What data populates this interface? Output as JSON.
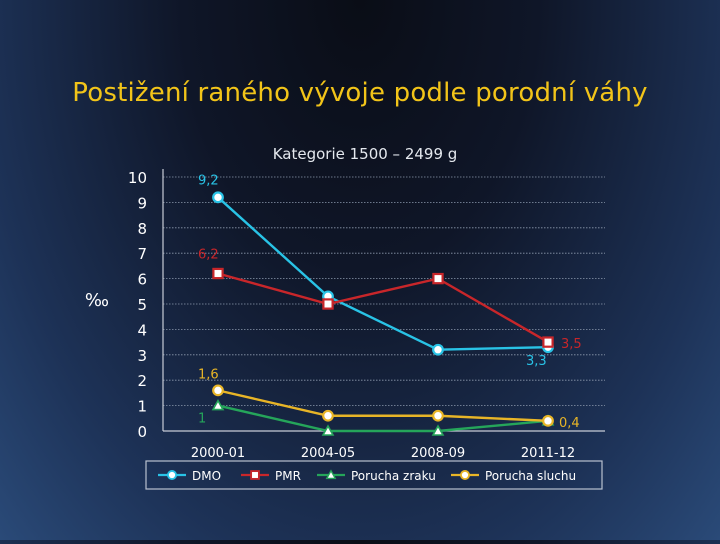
{
  "slide": {
    "title": "Postižení raného vývoje podle porodní váhy"
  },
  "chart_data": {
    "type": "line",
    "title": "Kategorie 1500 – 2499 g",
    "ylabel": "‰",
    "xlabel": "",
    "categories": [
      "2000-01",
      "2004-05",
      "2008-09",
      "2011-12"
    ],
    "ylim": [
      0,
      10
    ],
    "yticks": [
      0,
      1,
      2,
      3,
      4,
      5,
      6,
      7,
      8,
      9,
      10
    ],
    "grid": true,
    "legend_position": "bottom",
    "series": [
      {
        "name": "DMO",
        "values": [
          9.2,
          5.3,
          3.2,
          3.3
        ],
        "color": "#29c3e6",
        "marker": "circle",
        "labels": [
          {
            "index": 0,
            "text": "9,2"
          },
          {
            "index": 3,
            "text": "3,3"
          }
        ]
      },
      {
        "name": "PMR",
        "values": [
          6.2,
          5.0,
          6.0,
          3.5
        ],
        "color": "#c8262a",
        "marker": "square",
        "labels": [
          {
            "index": 0,
            "text": "6,2"
          },
          {
            "index": 3,
            "text": "3,5"
          }
        ]
      },
      {
        "name": "Porucha zraku",
        "values": [
          1.0,
          0.0,
          0.0,
          0.4
        ],
        "color": "#25a55a",
        "marker": "triangle",
        "labels": [
          {
            "index": 0,
            "text": "1"
          }
        ]
      },
      {
        "name": "Porucha sluchu",
        "values": [
          1.6,
          0.6,
          0.6,
          0.4
        ],
        "color": "#e8b527",
        "marker": "circle",
        "labels": [
          {
            "index": 0,
            "text": "1,6"
          },
          {
            "index": 3,
            "text": "0,4"
          }
        ]
      }
    ]
  }
}
